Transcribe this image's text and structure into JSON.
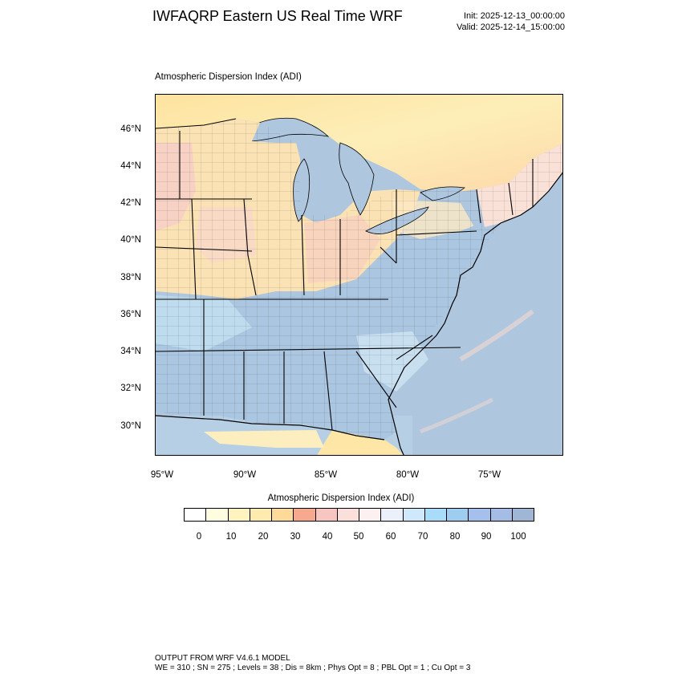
{
  "header": {
    "title": "IWFAQRP Eastern US Real Time WRF",
    "init": "Init: 2025-12-13_00:00:00",
    "valid": "Valid: 2025-12-14_15:00:00"
  },
  "map": {
    "subtitle": "Atmospheric Dispersion Index   (ADI)",
    "lat_labels": [
      "46°N",
      "44°N",
      "42°N",
      "40°N",
      "38°N",
      "36°N",
      "34°N",
      "32°N",
      "30°N"
    ],
    "lon_labels": [
      "95°W",
      "90°W",
      "85°W",
      "80°W",
      "75°W"
    ],
    "colors": {
      "ocean": "#aec6de",
      "land_warm": "#fde6a6",
      "land_pale": "#fdf3c8",
      "land_pink": "#f7cfc2",
      "land_blue": "#aac6e0",
      "land_light_blue": "#bfdcef"
    }
  },
  "colorbar": {
    "title": "Atmospheric Dispersion Index  (ADI)",
    "labels": [
      "0",
      "10",
      "20",
      "30",
      "40",
      "50",
      "60",
      "70",
      "80",
      "90",
      "100"
    ],
    "colors": [
      "#ffffff",
      "#fffde0",
      "#fff4c0",
      "#ffeab0",
      "#fdd99a",
      "#f6a98f",
      "#f8c6c0",
      "#fbdfda",
      "#fdf0f0",
      "#ebf0fb",
      "#cfe8fa",
      "#a8dcf8",
      "#9fcdf0",
      "#a5c0ec",
      "#a5bce4",
      "#9fb7d4"
    ]
  },
  "footer": {
    "line1": "OUTPUT FROM WRF V4.6.1 MODEL",
    "line2": "WE = 310 ; SN = 275 ; Levels = 38 ; Dis = 8km ; Phys Opt = 8 ; PBL Opt = 1 ; Cu Opt = 3"
  }
}
